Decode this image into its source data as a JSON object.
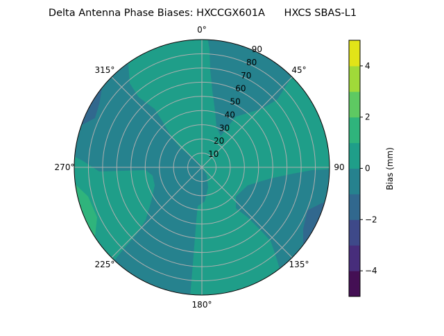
{
  "chart_data": {
    "type": "polar-contour",
    "title": "Delta Antenna Phase Biases: HXCCGX601A      HXCS SBAS-L1",
    "angular_ticks": [
      {
        "deg": 0,
        "label": "0°"
      },
      {
        "deg": 45,
        "label": "45°"
      },
      {
        "deg": 90,
        "label": "90"
      },
      {
        "deg": 135,
        "label": "135°"
      },
      {
        "deg": 180,
        "label": "180°"
      },
      {
        "deg": 225,
        "label": "225°"
      },
      {
        "deg": 270,
        "label": "270°"
      },
      {
        "deg": 315,
        "label": "315°"
      }
    ],
    "angular_direction": "clockwise",
    "angular_zero": "north",
    "radial_ticks": [
      10,
      20,
      30,
      40,
      50,
      60,
      70,
      80,
      90
    ],
    "radial_labels": [
      "10",
      "20",
      "30",
      "40",
      "50",
      "60",
      "70",
      "80",
      "90"
    ],
    "radial_range": [
      0,
      90
    ],
    "grid": true,
    "colorbar": {
      "label": "Bias (mm)",
      "range": [
        -5,
        5
      ],
      "levels": [
        -5,
        -4,
        -3,
        -2,
        -1,
        0,
        1,
        2,
        3,
        4,
        5
      ],
      "ticks": [
        -4,
        -2,
        0,
        2,
        4
      ],
      "tick_labels": [
        "−4",
        "−2",
        "0",
        "2",
        "4"
      ],
      "colormap": "viridis",
      "band_colors": [
        "#440f54",
        "#472d7b",
        "#3e4989",
        "#31688e",
        "#26828e",
        "#1f9e89",
        "#2fb47c",
        "#5ec962",
        "#a0da39",
        "#e2e418"
      ]
    },
    "regions": [
      {
        "level_range": [
          0,
          1
        ],
        "description": "background"
      },
      {
        "level_range": [
          -1,
          0
        ],
        "sector": "north-northeast, zenith 20-90"
      },
      {
        "level_range": [
          -1,
          0
        ],
        "sector": "west to southwest"
      },
      {
        "level_range": [
          -1,
          0
        ],
        "sector": "east-southeast"
      },
      {
        "level_range": [
          -2,
          -1
        ],
        "sector": "northwest edge"
      },
      {
        "level_range": [
          -2,
          -1
        ],
        "sector": "southeast edge"
      },
      {
        "level_range": [
          1,
          2
        ],
        "sector": "west-southwest edge"
      }
    ]
  }
}
